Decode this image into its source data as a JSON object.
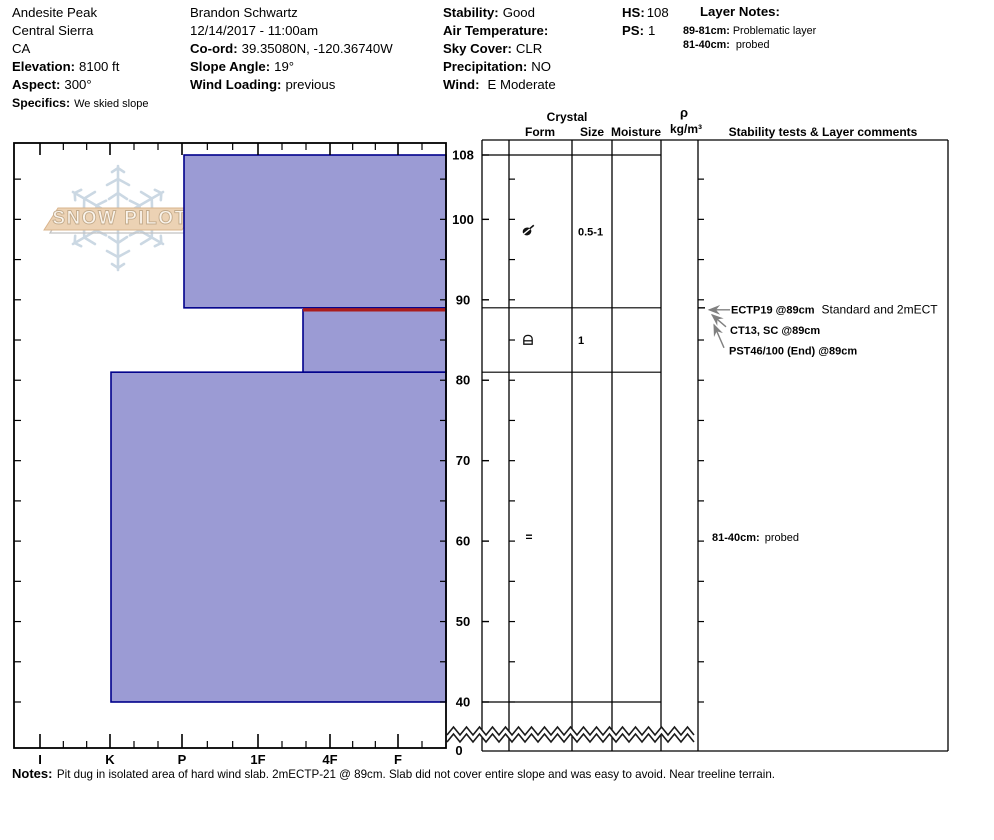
{
  "header": {
    "location": {
      "line1": "Andesite Peak",
      "line2": "Central Sierra",
      "line3": "CA",
      "elevation_label": "Elevation:",
      "elevation": "8100 ft",
      "aspect_label": "Aspect:",
      "aspect": "300°",
      "specifics_label": "Specifics:",
      "specifics": "We skied slope"
    },
    "observer": {
      "name": "Brandon Schwartz",
      "datetime": "12/14/2017 - 11:00am",
      "coord_label": "Co-ord:",
      "coord": "39.35080N, -120.36740W",
      "slope_label": "Slope Angle:",
      "slope": "19°",
      "windload_label": "Wind Loading:",
      "windload": "previous"
    },
    "conditions": {
      "stability_label": "Stability:",
      "stability": "Good",
      "airtemp_label": "Air Temperature:",
      "airtemp": "",
      "sky_label": "Sky Cover:",
      "sky": "CLR",
      "precip_label": "Precipitation:",
      "precip": "NO",
      "wind_label": "Wind:",
      "wind": "E Moderate"
    },
    "snowpack": {
      "hs_label": "HS:",
      "hs": "108",
      "ps_label": "PS:",
      "ps": "1"
    },
    "layer_notes": {
      "title": "Layer Notes:",
      "items": [
        {
          "range": "89-81cm:",
          "note": "Problematic layer"
        },
        {
          "range": "81-40cm:",
          "note": "probed"
        }
      ]
    }
  },
  "chart_data": {
    "type": "snow-profile",
    "watermark": "SNOW PILOT",
    "column_headers": {
      "crystal": "Crystal",
      "form": "Form",
      "size": "Size",
      "moisture": "Moisture",
      "density_symbol": "ρ",
      "density_units": "kg/m³",
      "comments": "Stability tests & Layer comments"
    },
    "depth_axis": {
      "unit": "cm",
      "total_depth_cm": 108,
      "truncated_below_cm": 40,
      "tick_labels": [
        108,
        100,
        90,
        80,
        70,
        60,
        50,
        40
      ],
      "bottom_label": "0"
    },
    "hardness_axis": {
      "labels": [
        "I",
        "K",
        "P",
        "1F",
        "4F",
        "F"
      ]
    },
    "layers": [
      {
        "top_cm": 108,
        "bottom_cm": 89,
        "hardness": "P",
        "crystal_form": "DF",
        "crystal_size": "0.5-1",
        "flagged": false
      },
      {
        "top_cm": 89,
        "bottom_cm": 81,
        "hardness": "4F-1F",
        "crystal_form": "RG-crust",
        "crystal_size": "1",
        "flagged": true
      },
      {
        "top_cm": 81,
        "bottom_cm": 40,
        "hardness": "K",
        "crystal_form": "=",
        "crystal_size": "",
        "flagged": false
      }
    ],
    "stability_tests": [
      {
        "label": "ECTP19 @89cm",
        "suffix": "Standard and 2mECT",
        "depth_cm": 89
      },
      {
        "label": "CT13, SC @89cm",
        "suffix": "",
        "depth_cm": 89
      },
      {
        "label": "PST46/100 (End) @89cm",
        "suffix": "",
        "depth_cm": 89
      }
    ],
    "layer_comments": [
      {
        "range": "81-40cm:",
        "note": "probed",
        "depth_cm": 60.5
      }
    ],
    "colors": {
      "layer_fill": "#9b9bd4",
      "layer_border": "#00008b",
      "flag_line": "#aa1c1c",
      "grid_line": "#000000",
      "watermark_blue": "#c9d6e2",
      "watermark_tan": "#ecd2b4",
      "watermark_tan_edge": "#d9b48c",
      "arrow_gray": "#808080"
    }
  },
  "notes": {
    "label": "Notes:",
    "text": "Pit dug in isolated area of hard wind slab. 2mECTP-21 @ 89cm. Slab did not cover entire slope and was easy to avoid. Near treeline terrain."
  }
}
